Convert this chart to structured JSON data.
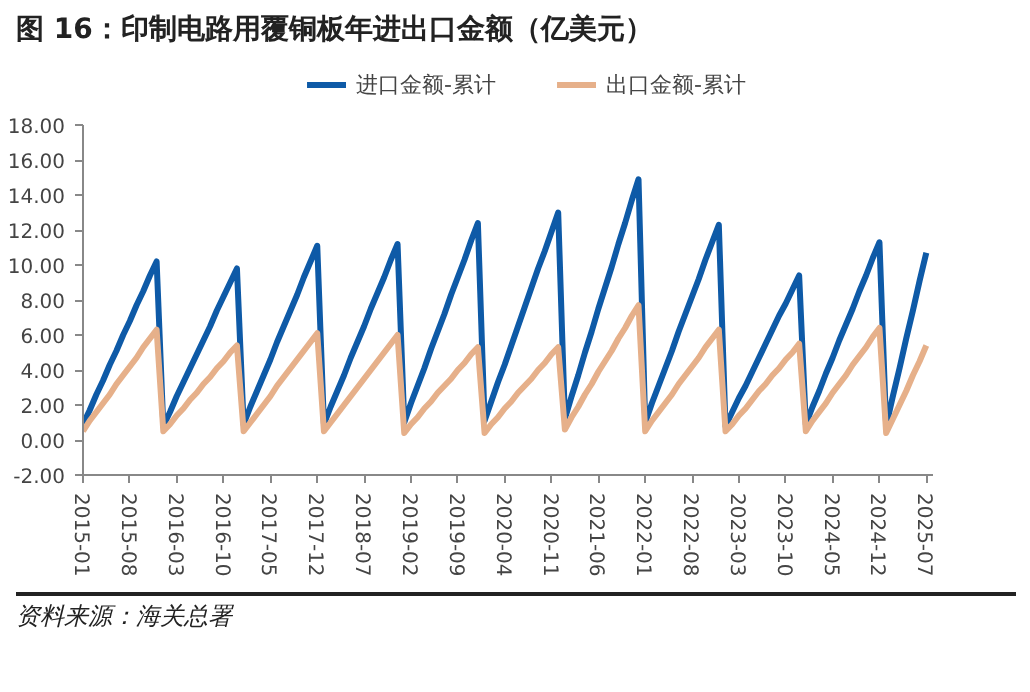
{
  "chart_data": {
    "type": "line",
    "title": "图 16：印制电路用覆铜板年进出口金额（亿美元）",
    "annotations": [
      "资料来源：海关总署"
    ],
    "x": [
      "2015-01",
      "2015-02",
      "2015-03",
      "2015-04",
      "2015-05",
      "2015-06",
      "2015-07",
      "2015-08",
      "2015-09",
      "2015-10",
      "2015-11",
      "2015-12",
      "2016-01",
      "2016-02",
      "2016-03",
      "2016-04",
      "2016-05",
      "2016-06",
      "2016-07",
      "2016-08",
      "2016-09",
      "2016-10",
      "2016-11",
      "2016-12",
      "2017-01",
      "2017-02",
      "2017-03",
      "2017-04",
      "2017-05",
      "2017-06",
      "2017-07",
      "2017-08",
      "2017-09",
      "2017-10",
      "2017-11",
      "2017-12",
      "2018-01",
      "2018-02",
      "2018-03",
      "2018-04",
      "2018-05",
      "2018-06",
      "2018-07",
      "2018-08",
      "2018-09",
      "2018-10",
      "2018-11",
      "2018-12",
      "2019-01",
      "2019-02",
      "2019-03",
      "2019-04",
      "2019-05",
      "2019-06",
      "2019-07",
      "2019-08",
      "2019-09",
      "2019-10",
      "2019-11",
      "2019-12",
      "2020-01",
      "2020-02",
      "2020-03",
      "2020-04",
      "2020-05",
      "2020-06",
      "2020-07",
      "2020-08",
      "2020-09",
      "2020-10",
      "2020-11",
      "2020-12",
      "2021-01",
      "2021-02",
      "2021-03",
      "2021-04",
      "2021-05",
      "2021-06",
      "2021-07",
      "2021-08",
      "2021-09",
      "2021-10",
      "2021-11",
      "2021-12",
      "2022-01",
      "2022-02",
      "2022-03",
      "2022-04",
      "2022-05",
      "2022-06",
      "2022-07",
      "2022-08",
      "2022-09",
      "2022-10",
      "2022-11",
      "2022-12",
      "2023-01",
      "2023-02",
      "2023-03",
      "2023-04",
      "2023-05",
      "2023-06",
      "2023-07",
      "2023-08",
      "2023-09",
      "2023-10",
      "2023-11",
      "2023-12",
      "2024-01",
      "2024-02",
      "2024-03",
      "2024-04",
      "2024-05",
      "2024-06",
      "2024-07",
      "2024-08",
      "2024-09",
      "2024-10",
      "2024-11",
      "2024-12",
      "2025-01",
      "2025-02",
      "2025-03",
      "2025-04",
      "2025-05",
      "2025-06",
      "2025-07"
    ],
    "series": [
      {
        "name": "进口金额-累计",
        "color": "#0e5aa7",
        "values": [
          0.9,
          1.7,
          2.6,
          3.4,
          4.3,
          5.1,
          6.0,
          6.8,
          7.7,
          8.5,
          9.4,
          10.2,
          0.8,
          1.6,
          2.5,
          3.3,
          4.1,
          4.9,
          5.7,
          6.5,
          7.4,
          8.2,
          9.0,
          9.8,
          0.9,
          1.9,
          2.8,
          3.7,
          4.6,
          5.6,
          6.5,
          7.4,
          8.3,
          9.3,
          10.2,
          11.1,
          0.9,
          1.9,
          2.8,
          3.7,
          4.7,
          5.6,
          6.5,
          7.5,
          8.4,
          9.3,
          10.3,
          11.2,
          1.0,
          2.1,
          3.1,
          4.1,
          5.2,
          6.2,
          7.2,
          8.3,
          9.3,
          10.3,
          11.4,
          12.4,
          1.1,
          2.2,
          3.3,
          4.3,
          5.4,
          6.5,
          7.6,
          8.7,
          9.8,
          10.8,
          11.9,
          13.0,
          1.2,
          2.5,
          3.7,
          5.0,
          6.2,
          7.5,
          8.7,
          9.9,
          11.2,
          12.4,
          13.7,
          14.9,
          1.0,
          2.1,
          3.1,
          4.1,
          5.1,
          6.2,
          7.2,
          8.2,
          9.2,
          10.3,
          11.3,
          12.3,
          0.8,
          1.6,
          2.4,
          3.1,
          3.9,
          4.7,
          5.5,
          6.3,
          7.1,
          7.8,
          8.6,
          9.4,
          0.9,
          1.9,
          2.8,
          3.8,
          4.7,
          5.7,
          6.6,
          7.5,
          8.5,
          9.4,
          10.4,
          11.3,
          0.8,
          2.5,
          4.1,
          5.8,
          7.4,
          9.1,
          10.7
        ]
      },
      {
        "name": "出口金额-累计",
        "color": "#e6b08a",
        "values": [
          0.5,
          1.1,
          1.6,
          2.1,
          2.6,
          3.2,
          3.7,
          4.2,
          4.7,
          5.3,
          5.8,
          6.3,
          0.5,
          0.9,
          1.4,
          1.8,
          2.3,
          2.7,
          3.2,
          3.6,
          4.1,
          4.5,
          5.0,
          5.4,
          0.5,
          1.0,
          1.5,
          2.0,
          2.5,
          3.1,
          3.6,
          4.1,
          4.6,
          5.1,
          5.6,
          6.1,
          0.5,
          1.0,
          1.5,
          2.0,
          2.5,
          3.0,
          3.5,
          4.0,
          4.5,
          5.0,
          5.5,
          6.0,
          0.4,
          0.9,
          1.3,
          1.8,
          2.2,
          2.7,
          3.1,
          3.5,
          4.0,
          4.4,
          4.9,
          5.3,
          0.4,
          0.9,
          1.3,
          1.8,
          2.2,
          2.7,
          3.1,
          3.5,
          4.0,
          4.4,
          4.9,
          5.3,
          0.6,
          1.3,
          1.9,
          2.6,
          3.2,
          3.9,
          4.5,
          5.1,
          5.8,
          6.4,
          7.1,
          7.7,
          0.5,
          1.1,
          1.6,
          2.1,
          2.6,
          3.2,
          3.7,
          4.2,
          4.7,
          5.3,
          5.8,
          6.3,
          0.5,
          0.9,
          1.4,
          1.8,
          2.3,
          2.8,
          3.2,
          3.7,
          4.1,
          4.6,
          5.0,
          5.5,
          0.5,
          1.1,
          1.6,
          2.1,
          2.7,
          3.2,
          3.7,
          4.3,
          4.8,
          5.3,
          5.9,
          6.4,
          0.4,
          1.2,
          2.0,
          2.8,
          3.7,
          4.5,
          5.4
        ]
      }
    ],
    "xlim": [
      "2015-01",
      "2025-08"
    ],
    "xticks": [
      "2015-01",
      "2015-08",
      "2016-03",
      "2016-10",
      "2017-05",
      "2017-12",
      "2018-07",
      "2019-02",
      "2019-09",
      "2020-04",
      "2020-11",
      "2021-06",
      "2022-01",
      "2022-08",
      "2023-03",
      "2023-10",
      "2024-05",
      "2024-12",
      "2025-07"
    ],
    "ylim": [
      -2,
      18
    ],
    "yticks": [
      {
        "value": -2,
        "label": "-2.00"
      },
      {
        "value": 0,
        "label": "0.00"
      },
      {
        "value": 2,
        "label": "2.00"
      },
      {
        "value": 4,
        "label": "4.00"
      },
      {
        "value": 6,
        "label": "6.00"
      },
      {
        "value": 8,
        "label": "8.00"
      },
      {
        "value": 10,
        "label": "10.00"
      },
      {
        "value": 12,
        "label": "12.00"
      },
      {
        "value": 14,
        "label": "14.00"
      },
      {
        "value": 16,
        "label": "16.00"
      },
      {
        "value": 18,
        "label": "18.00"
      }
    ],
    "grid": false,
    "legend": "top",
    "marker": "none",
    "line_style": "solid"
  }
}
